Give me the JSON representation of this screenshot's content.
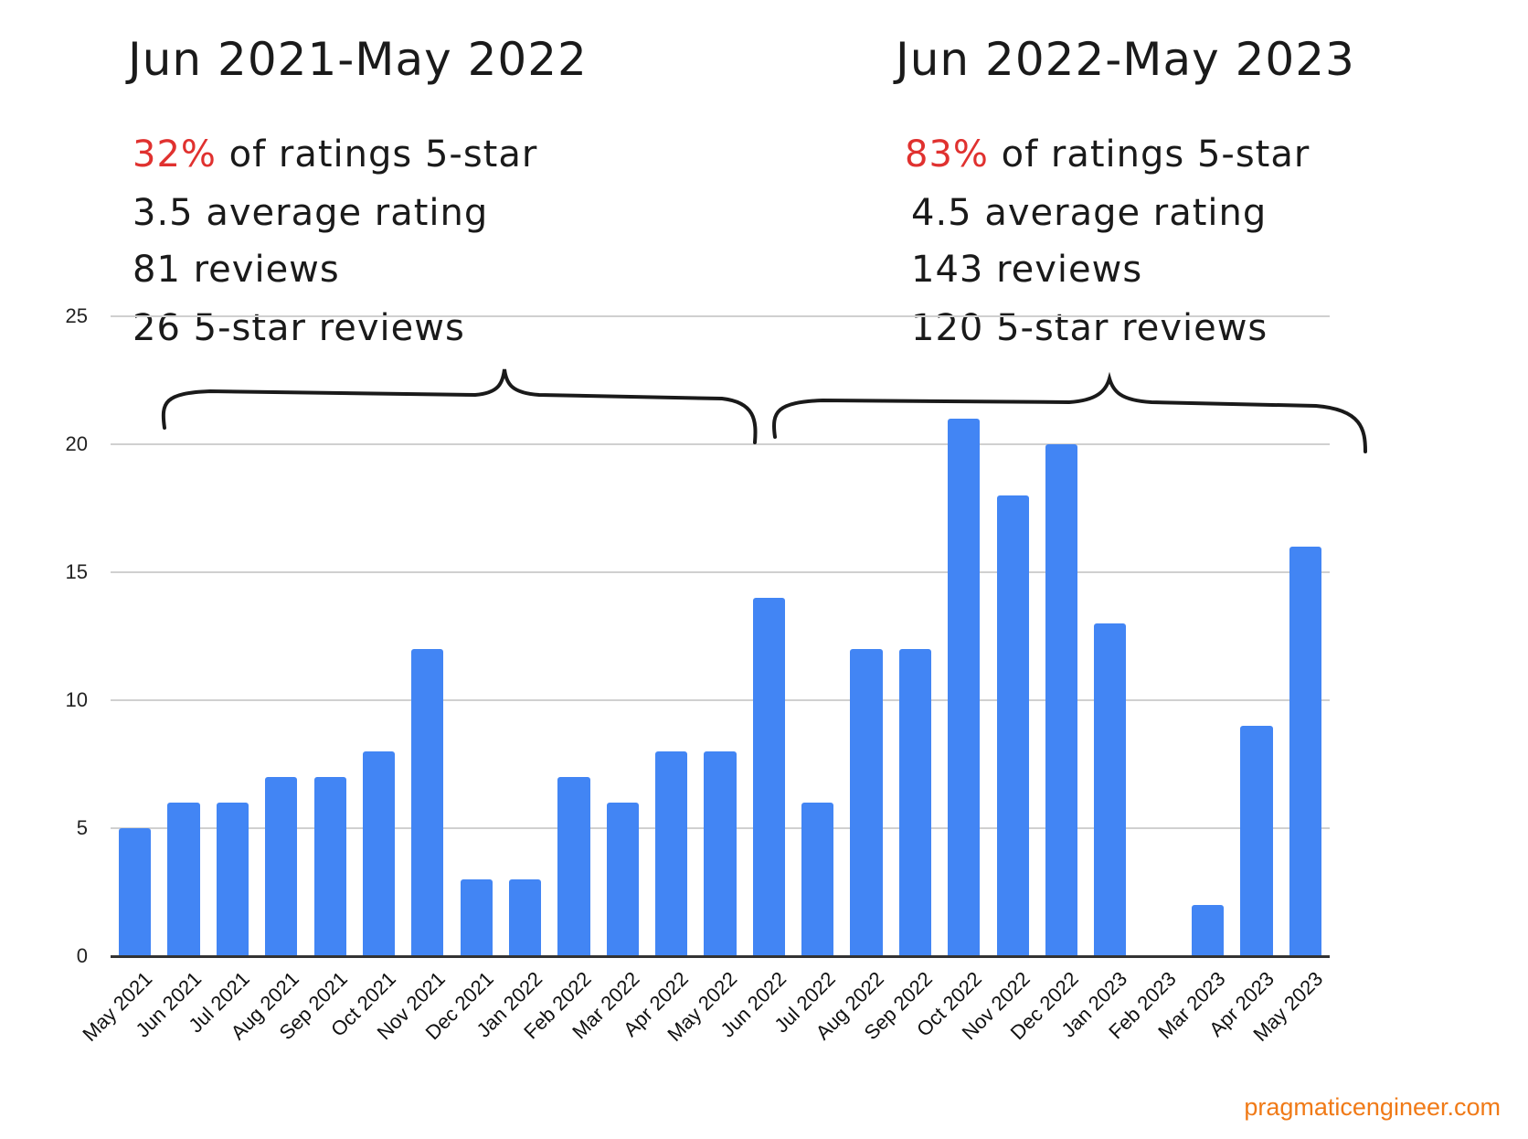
{
  "left_period": {
    "title": "Jun 2021-May 2022",
    "pct_five_star": "32%",
    "pct_suffix": "of ratings 5-star",
    "average_rating": "3.5 average rating",
    "reviews": "81 reviews",
    "five_star_reviews": "26 5-star reviews"
  },
  "right_period": {
    "title": "Jun 2022-May 2023",
    "pct_five_star": "83%",
    "pct_suffix": "of ratings 5-star",
    "average_rating": "4.5 average rating",
    "reviews": "143 reviews",
    "five_star_reviews": "120 5-star reviews"
  },
  "credit": "pragmaticengineer.com",
  "colors": {
    "bar": "#4285f4",
    "highlight": "#e0312f",
    "credit": "#f07a17"
  },
  "chart_data": {
    "type": "bar",
    "title": "",
    "xlabel": "",
    "ylabel": "",
    "ylim": [
      0,
      25
    ],
    "yticks": [
      0,
      5,
      10,
      15,
      20,
      25
    ],
    "grid": true,
    "legend": null,
    "categories": [
      "May 2021",
      "Jun 2021",
      "Jul 2021",
      "Aug 2021",
      "Sep 2021",
      "Oct 2021",
      "Nov 2021",
      "Dec 2021",
      "Jan 2022",
      "Feb 2022",
      "Mar 2022",
      "Apr 2022",
      "May 2022",
      "Jun 2022",
      "Jul 2022",
      "Aug 2022",
      "Sep 2022",
      "Oct 2022",
      "Nov 2022",
      "Dec 2022",
      "Jan 2023",
      "Feb 2023",
      "Mar 2023",
      "Apr 2023",
      "May 2023"
    ],
    "values": [
      5,
      6,
      6,
      7,
      7,
      8,
      12,
      3,
      3,
      7,
      6,
      8,
      8,
      14,
      6,
      12,
      12,
      21,
      18,
      20,
      13,
      0,
      2,
      9,
      16
    ],
    "annotations": [
      {
        "text": "Jun 2021-May 2022: 32% of ratings 5-star, 3.5 average rating, 81 reviews, 26 5-star reviews",
        "brace_over": "Jun 2021 - May 2022"
      },
      {
        "text": "Jun 2022-May 2023: 83% of ratings 5-star, 4.5 average rating, 143 reviews, 120 5-star reviews",
        "brace_over": "Jun 2022 - May 2023"
      }
    ]
  }
}
